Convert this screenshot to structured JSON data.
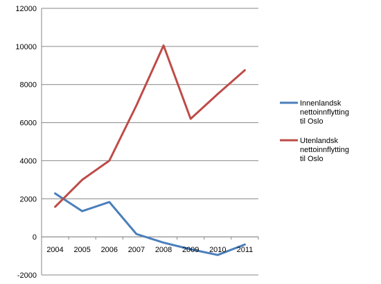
{
  "chart_data": {
    "type": "line",
    "title": "",
    "xlabel": "",
    "ylabel": "",
    "categories": [
      "2004",
      "2005",
      "2006",
      "2007",
      "2008",
      "2009",
      "2010",
      "2011"
    ],
    "ylim": [
      -2000,
      12000
    ],
    "yticks": [
      "12000",
      "10000",
      "8000",
      "6000",
      "4000",
      "2000",
      "0",
      "-2000"
    ],
    "grid": true,
    "legend_position": "right",
    "series": [
      {
        "name": "Innenlandsk nettoinnflytting til Oslo",
        "legend_lines": [
          "Innenlandsk",
          "nettoinnflytting",
          "til Oslo"
        ],
        "color": "#4a7ebb",
        "values": [
          2280,
          1350,
          1830,
          150,
          -300,
          -650,
          -950,
          -400
        ]
      },
      {
        "name": "Utenlandsk nettoinnflytting til Oslo",
        "legend_lines": [
          "Utenlandsk",
          "nettoinnflytting",
          "til Oslo"
        ],
        "color": "#be4b48",
        "values": [
          1580,
          3000,
          4000,
          6900,
          10050,
          6200,
          7500,
          8750
        ]
      }
    ]
  }
}
